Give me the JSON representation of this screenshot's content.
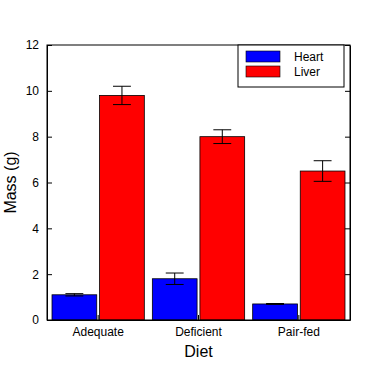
{
  "chart_data": {
    "type": "bar",
    "x_label": "Diet",
    "y_label": "Mass (g)",
    "categories": [
      "Adequate",
      "Deficient",
      "Pair-fed"
    ],
    "series": [
      {
        "name": "Heart",
        "color": "#0000ff",
        "values": [
          1.1,
          1.8,
          0.7
        ],
        "errors": [
          0.05,
          0.25,
          0.02
        ]
      },
      {
        "name": "Liver",
        "color": "#ff0000",
        "values": [
          9.8,
          8.0,
          6.5
        ],
        "errors": [
          0.4,
          0.3,
          0.45
        ]
      }
    ],
    "ylim": [
      0,
      12
    ],
    "yticks": [
      0,
      2,
      4,
      6,
      8,
      10,
      12
    ],
    "legend": "upper right"
  }
}
